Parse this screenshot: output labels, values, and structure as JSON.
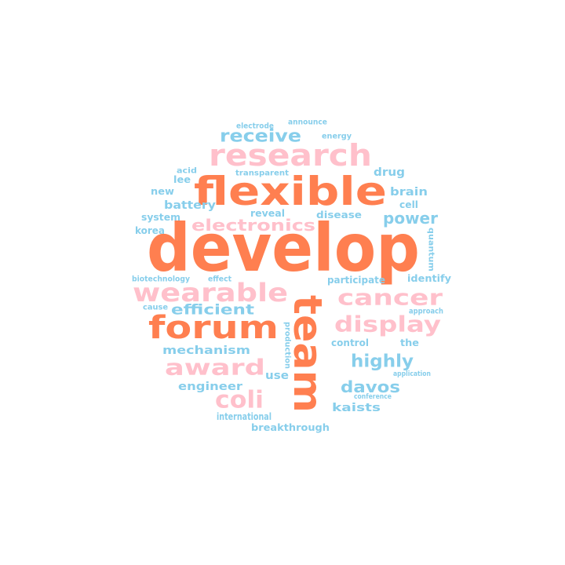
{
  "colors": {
    "orange": "#ff7f50",
    "pink": "#ffc0cb",
    "blue": "#87ceeb"
  },
  "words": [
    {
      "key": "develop",
      "text": "develop",
      "color": "orange"
    },
    {
      "key": "flexible",
      "text": "flexible",
      "color": "orange"
    },
    {
      "key": "team",
      "text": "team",
      "color": "orange"
    },
    {
      "key": "forum",
      "text": "forum",
      "color": "orange"
    },
    {
      "key": "research",
      "text": "research",
      "color": "pink"
    },
    {
      "key": "wearable",
      "text": "wearable",
      "color": "pink"
    },
    {
      "key": "cancer",
      "text": "cancer",
      "color": "pink"
    },
    {
      "key": "display",
      "text": "display",
      "color": "pink"
    },
    {
      "key": "award",
      "text": "award",
      "color": "pink"
    },
    {
      "key": "electronics",
      "text": "electronics",
      "color": "pink"
    },
    {
      "key": "coli",
      "text": "coli",
      "color": "pink"
    },
    {
      "key": "receive",
      "text": "receive",
      "color": "blue"
    },
    {
      "key": "power",
      "text": "power",
      "color": "blue"
    },
    {
      "key": "highly",
      "text": "highly",
      "color": "blue"
    },
    {
      "key": "davos",
      "text": "davos",
      "color": "blue"
    },
    {
      "key": "efficient",
      "text": "efficient",
      "color": "blue"
    },
    {
      "key": "mechanism",
      "text": "mechanism",
      "color": "blue"
    },
    {
      "key": "engineer",
      "text": "engineer",
      "color": "blue"
    },
    {
      "key": "kaists",
      "text": "kaists",
      "color": "blue"
    },
    {
      "key": "brain",
      "text": "brain",
      "color": "blue"
    },
    {
      "key": "drug",
      "text": "drug",
      "color": "blue"
    },
    {
      "key": "cell",
      "text": "cell",
      "color": "blue"
    },
    {
      "key": "battery",
      "text": "battery",
      "color": "blue"
    },
    {
      "key": "system",
      "text": "system",
      "color": "blue"
    },
    {
      "key": "korea",
      "text": "korea",
      "color": "blue"
    },
    {
      "key": "new",
      "text": "new",
      "color": "blue"
    },
    {
      "key": "lee",
      "text": "lee",
      "color": "blue"
    },
    {
      "key": "acid",
      "text": "acid",
      "color": "blue"
    },
    {
      "key": "transparent",
      "text": "transparent",
      "color": "blue"
    },
    {
      "key": "electrode",
      "text": "electrode",
      "color": "blue"
    },
    {
      "key": "announce",
      "text": "announce",
      "color": "blue"
    },
    {
      "key": "energy",
      "text": "energy",
      "color": "blue"
    },
    {
      "key": "reveal",
      "text": "reveal",
      "color": "blue"
    },
    {
      "key": "disease",
      "text": "disease",
      "color": "blue"
    },
    {
      "key": "quantum",
      "text": "quantum",
      "color": "blue"
    },
    {
      "key": "identify",
      "text": "identify",
      "color": "blue"
    },
    {
      "key": "participate",
      "text": "participate",
      "color": "blue"
    },
    {
      "key": "biotechnology",
      "text": "biotechnology",
      "color": "blue"
    },
    {
      "key": "effect",
      "text": "effect",
      "color": "blue"
    },
    {
      "key": "cause",
      "text": "cause",
      "color": "blue"
    },
    {
      "key": "approach",
      "text": "approach",
      "color": "blue"
    },
    {
      "key": "control",
      "text": "control",
      "color": "blue"
    },
    {
      "key": "the",
      "text": "the",
      "color": "blue"
    },
    {
      "key": "production",
      "text": "production",
      "color": "blue"
    },
    {
      "key": "use",
      "text": "use",
      "color": "blue"
    },
    {
      "key": "application",
      "text": "application",
      "color": "blue"
    },
    {
      "key": "conference",
      "text": "conference",
      "color": "blue"
    },
    {
      "key": "international",
      "text": "international",
      "color": "blue"
    },
    {
      "key": "breakthrough",
      "text": "breakthrough",
      "color": "blue"
    }
  ]
}
